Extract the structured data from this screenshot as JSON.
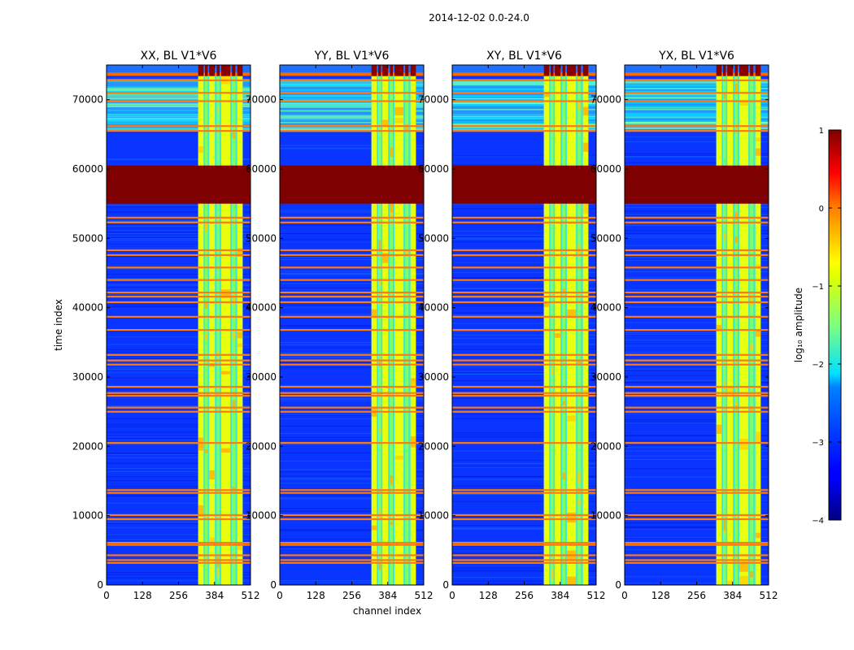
{
  "figure": {
    "suptitle": "2014-12-02 0.0-24.0"
  },
  "chart_data": {
    "type": "heatmap",
    "colormap": "jet",
    "panels": [
      {
        "title": "XX, BL V1*V6",
        "polarization": "XX"
      },
      {
        "title": "YY, BL V1*V6",
        "polarization": "YY"
      },
      {
        "title": "XY, BL V1*V6",
        "polarization": "XY"
      },
      {
        "title": "YX, BL V1*V6",
        "polarization": "YX"
      }
    ],
    "xlabel": "channel index",
    "ylabel": "time index",
    "xlim": [
      0,
      512
    ],
    "ylim": [
      0,
      75000
    ],
    "xticks": [
      0,
      128,
      256,
      384,
      512
    ],
    "yticks": [
      0,
      10000,
      20000,
      30000,
      40000,
      50000,
      60000,
      70000
    ],
    "colorbar": {
      "label": "log₁₀ amplitude",
      "range": [
        -4,
        1
      ],
      "ticks": [
        "1",
        "0",
        "−1",
        "−2",
        "−3",
        "−4"
      ]
    },
    "features": {
      "saturated_time_block": [
        55000,
        60500
      ],
      "bright_channel_band": [
        326,
        484
      ],
      "bright_channel_columns": [
        [
          326,
          345
        ],
        [
          350,
          360
        ],
        [
          365,
          385
        ],
        [
          392,
          402
        ],
        [
          408,
          440
        ],
        [
          446,
          458
        ],
        [
          465,
          484
        ]
      ],
      "top_flagged_block": [
        73500,
        75000
      ],
      "busy_time_band": [
        65500,
        73000
      ],
      "flagged_time_rows": [
        3200,
        3600,
        4300,
        5800,
        6100,
        9500,
        10100,
        13300,
        13700,
        20500,
        25000,
        25600,
        27300,
        27700,
        28600,
        31800,
        32400,
        33200,
        36800,
        38700,
        40800,
        41600,
        42200,
        44000,
        45800,
        47600,
        48300,
        52300,
        53000,
        65500,
        66200,
        69800,
        71000,
        72800
      ]
    }
  }
}
